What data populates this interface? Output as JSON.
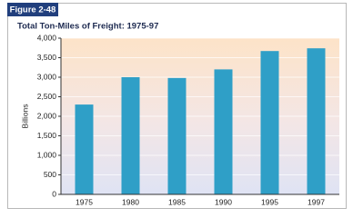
{
  "figure_label": "Figure 2-48",
  "chart_data": {
    "type": "bar",
    "title": "Total Ton-Miles of Freight: 1975-97",
    "y_label": "Billions",
    "categories": [
      "1975",
      "1980",
      "1985",
      "1990",
      "1995",
      "1997"
    ],
    "values": [
      2300,
      3000,
      2980,
      3200,
      3670,
      3740
    ],
    "color": "#2f9fc7",
    "ylim": [
      0,
      4000
    ],
    "yticks": [
      0,
      500,
      {
        "value": 1000,
        "label": "1,000"
      },
      {
        "value": 1500,
        "label": "1,500"
      },
      {
        "value": 2000,
        "label": "2,000"
      },
      {
        "value": 2500,
        "label": "2,500"
      },
      {
        "value": 3000,
        "label": "3,000"
      },
      {
        "value": 3500,
        "label": "3,500"
      },
      {
        "value": 4000,
        "label": "4,000"
      }
    ],
    "grid": true
  }
}
